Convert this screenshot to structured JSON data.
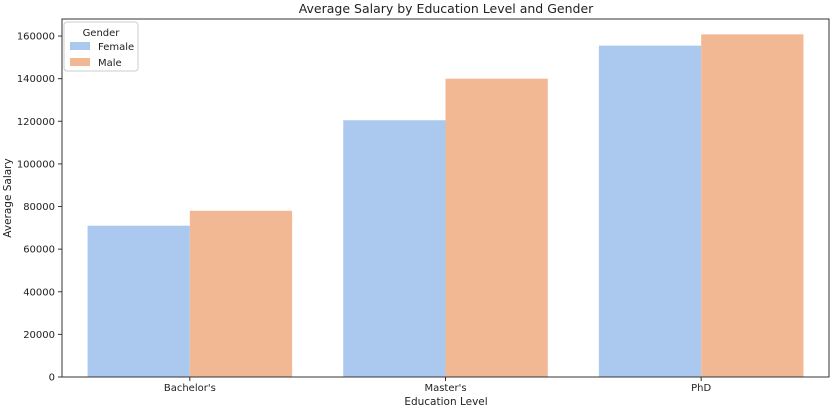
{
  "chart_data": {
    "type": "bar",
    "title": "Average Salary by Education Level and Gender",
    "xlabel": "Education Level",
    "ylabel": "Average Salary",
    "categories": [
      "Bachelor's",
      "Master's",
      "PhD"
    ],
    "series": [
      {
        "name": "Female",
        "values": [
          71000,
          120500,
          155500
        ],
        "color": "#abc9ee"
      },
      {
        "name": "Male",
        "values": [
          78000,
          140000,
          160800
        ],
        "color": "#f1b893"
      }
    ],
    "ylim": [
      0,
      168000
    ],
    "yticks": [
      0,
      20000,
      40000,
      60000,
      80000,
      100000,
      120000,
      140000,
      160000
    ],
    "ytick_labels": [
      "0",
      "20000",
      "40000",
      "60000",
      "80000",
      "100000",
      "120000",
      "140000",
      "160000"
    ],
    "grid": false,
    "legend": {
      "title": "Gender",
      "placement": "top-left"
    }
  }
}
